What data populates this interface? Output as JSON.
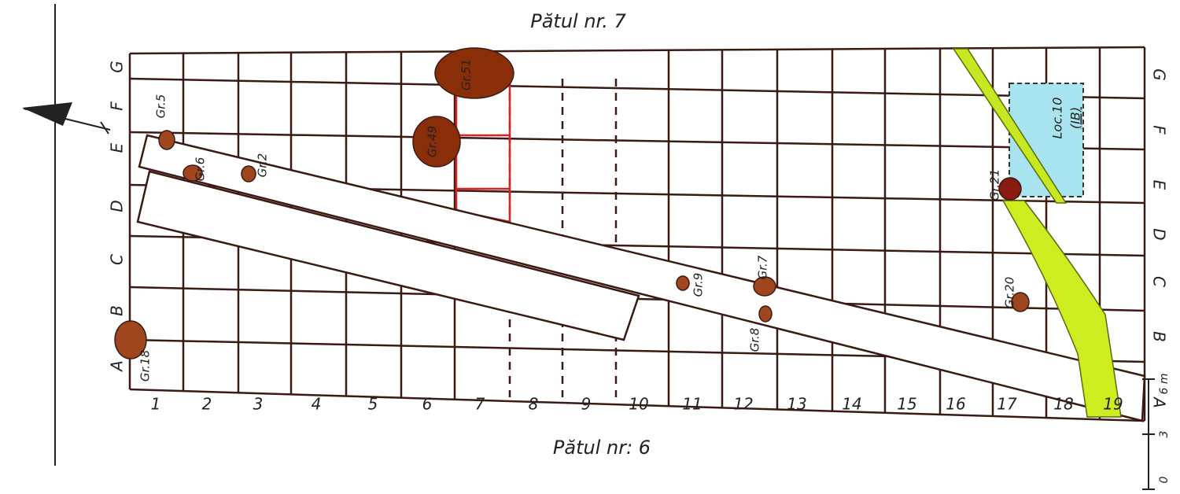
{
  "header": {
    "top": "Pătul nr. 7",
    "bottom": "Pătul nr: 6"
  },
  "columns": [
    "1",
    "2",
    "3",
    "4",
    "5",
    "6",
    "7",
    "8",
    "9",
    "10",
    "11",
    "12",
    "13",
    "14",
    "15",
    "16",
    "17",
    "18",
    "19"
  ],
  "rows_left": [
    "A",
    "B",
    "C",
    "D",
    "E",
    "F",
    "G"
  ],
  "rows_right": [
    "A",
    "B",
    "C",
    "D",
    "E",
    "F",
    "G"
  ],
  "graves": [
    {
      "label": "Gr.5"
    },
    {
      "label": "Gr.6"
    },
    {
      "label": "Gr.2"
    },
    {
      "label": "Gr.51"
    },
    {
      "label": "Gr.49"
    },
    {
      "label": "Gr.18"
    },
    {
      "label": "Gr.9"
    },
    {
      "label": "Gr.7"
    },
    {
      "label": "Gr.8"
    },
    {
      "label": "Gr.20"
    },
    {
      "label": "Gr.21"
    }
  ],
  "feature": {
    "label": "Loc.10",
    "sublabel": "(IB)"
  },
  "scale": {
    "labels": [
      "0",
      "3",
      "6 m"
    ]
  }
}
